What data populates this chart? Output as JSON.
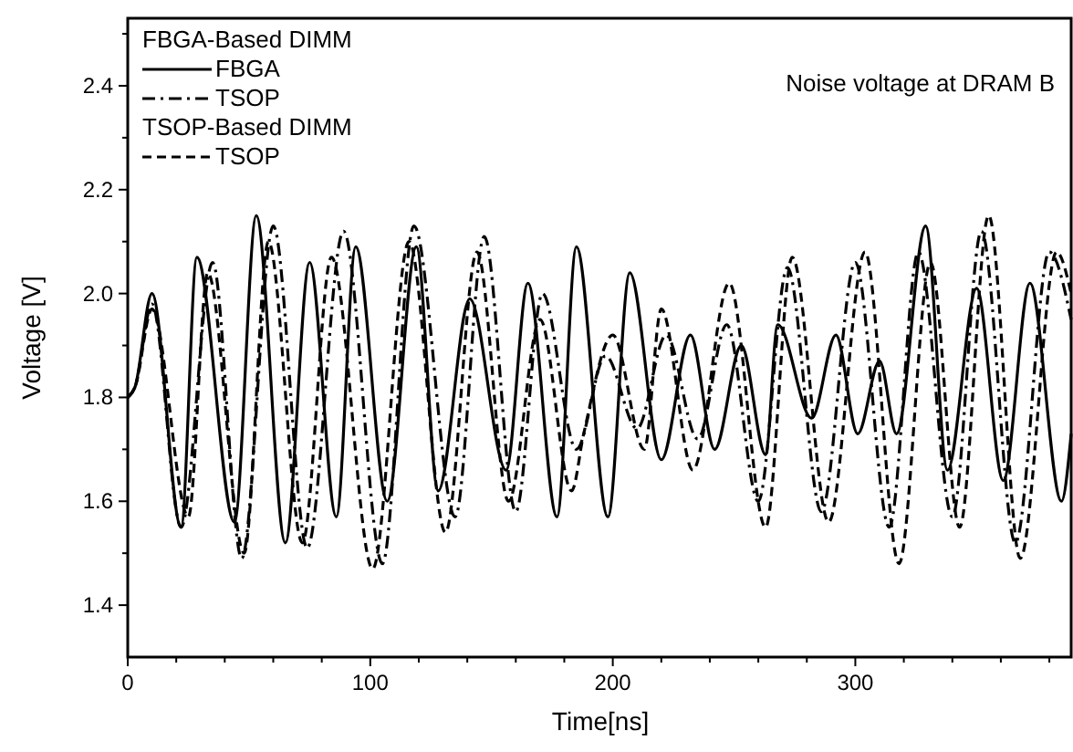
{
  "chart_data": {
    "type": "line",
    "xlabel": "Time[ns]",
    "ylabel": "Voltage [V]",
    "annotations": [
      "FBGA-Based DIMM",
      "TSOP-Based DIMM",
      "Noise voltage at DRAM B"
    ],
    "xlim": [
      0,
      389
    ],
    "ylim": [
      1.3,
      2.53
    ],
    "xticks": [
      0,
      {
        "value": 20,
        "label": null
      },
      {
        "value": 40,
        "label": null
      },
      {
        "value": 60,
        "label": null
      },
      {
        "value": 80,
        "label": null
      },
      100,
      {
        "value": 120,
        "label": null
      },
      {
        "value": 140,
        "label": null
      },
      {
        "value": 160,
        "label": null
      },
      {
        "value": 180,
        "label": null
      },
      200,
      {
        "value": 220,
        "label": null
      },
      {
        "value": 240,
        "label": null
      },
      {
        "value": 260,
        "label": null
      },
      {
        "value": 280,
        "label": null
      },
      300,
      {
        "value": 320,
        "label": null
      },
      {
        "value": 340,
        "label": null
      },
      {
        "value": 360,
        "label": null
      },
      {
        "value": 380,
        "label": null
      }
    ],
    "yticks": [
      {
        "value": 1.4,
        "label": "1.4"
      },
      {
        "value": 1.5,
        "label": null
      },
      {
        "value": 1.6,
        "label": "1.6"
      },
      {
        "value": 1.7,
        "label": null
      },
      {
        "value": 1.8,
        "label": "1.8"
      },
      {
        "value": 1.9,
        "label": null
      },
      {
        "value": 2.0,
        "label": "2.0"
      },
      {
        "value": 2.1,
        "label": null
      },
      {
        "value": 2.2,
        "label": "2.2"
      },
      {
        "value": 2.3,
        "label": null
      },
      {
        "value": 2.4,
        "label": "2.4"
      },
      {
        "value": 2.5,
        "label": null
      }
    ],
    "grid": false,
    "legend": "top left",
    "marker": "none",
    "series": [
      {
        "name": "FBGA",
        "color": "#000000",
        "line_style": "solid",
        "x": [
          0,
          3,
          10,
          22,
          28.5,
          44,
          53,
          65,
          75,
          86,
          94,
          107,
          119,
          128,
          141,
          156,
          165,
          177,
          185,
          198,
          207,
          220,
          232,
          242,
          253,
          263,
          268,
          282,
          292,
          301,
          310,
          317,
          329,
          338,
          350,
          361,
          372,
          385,
          389
        ],
        "values": [
          1.8,
          1.82,
          2.0,
          1.55,
          2.07,
          1.56,
          2.15,
          1.52,
          2.06,
          1.57,
          2.09,
          1.6,
          2.09,
          1.62,
          1.99,
          1.66,
          2.02,
          1.57,
          2.09,
          1.57,
          2.04,
          1.68,
          1.92,
          1.7,
          1.9,
          1.69,
          1.94,
          1.76,
          1.92,
          1.73,
          1.87,
          1.73,
          2.13,
          1.66,
          2.01,
          1.64,
          2.02,
          1.6,
          1.73
        ]
      },
      {
        "name": "TSOP",
        "color": "#000000",
        "line_style": "dashdot",
        "x": [
          0,
          3,
          10,
          22,
          35,
          47,
          60,
          74,
          89,
          105,
          118,
          135,
          147,
          160,
          171,
          185,
          197,
          210,
          222,
          235,
          247,
          260,
          272,
          286,
          300,
          314,
          326,
          340,
          352,
          366,
          380,
          389
        ],
        "values": [
          1.8,
          1.82,
          1.98,
          1.55,
          2.06,
          1.49,
          2.13,
          1.51,
          2.12,
          1.48,
          2.13,
          1.57,
          2.11,
          1.58,
          2.0,
          1.7,
          1.88,
          1.74,
          1.92,
          1.72,
          1.94,
          1.6,
          2.05,
          1.58,
          2.06,
          1.55,
          2.08,
          1.57,
          2.12,
          1.52,
          2.08,
          1.95
        ]
      },
      {
        "name": "TSOP",
        "color": "#000000",
        "line_style": "dashed",
        "x": [
          0,
          3,
          10,
          25,
          33,
          48,
          58,
          72,
          84,
          101,
          116,
          131,
          144,
          157,
          170,
          183,
          188,
          200,
          213,
          220,
          233,
          248,
          263,
          274,
          289,
          304,
          318,
          331,
          343,
          355,
          368,
          383,
          389
        ],
        "values": [
          1.8,
          1.82,
          1.97,
          1.57,
          2.04,
          1.5,
          2.1,
          1.52,
          2.07,
          1.47,
          2.1,
          1.54,
          2.08,
          1.6,
          1.95,
          1.62,
          1.73,
          1.92,
          1.7,
          1.97,
          1.66,
          2.02,
          1.55,
          2.07,
          1.56,
          2.08,
          1.48,
          2.06,
          1.55,
          2.15,
          1.49,
          2.08,
          2.0
        ]
      }
    ]
  }
}
